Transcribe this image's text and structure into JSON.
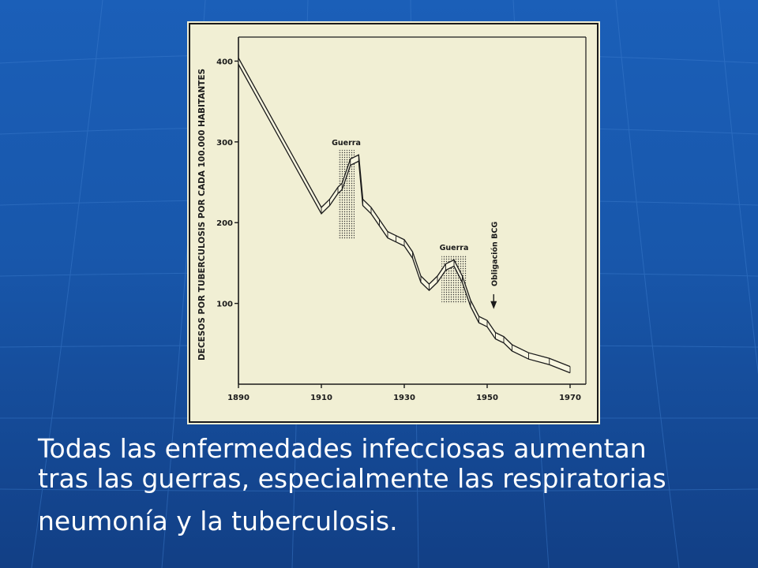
{
  "chart_data": {
    "type": "line",
    "ylabel": "DECESOS POR TUBERCULOSIS POR CADA 100.000 HABITANTES",
    "xlim": [
      1890,
      1970
    ],
    "ylim": [
      0,
      420
    ],
    "x_ticks": [
      "1890",
      "1910",
      "1930",
      "1950",
      "1970"
    ],
    "y_ticks": [
      "100",
      "200",
      "300",
      "400"
    ],
    "x_tick_values": [
      1890,
      1910,
      1930,
      1950,
      1970
    ],
    "y_tick_values": [
      100,
      200,
      300,
      400
    ],
    "series": [
      {
        "x": [
          1890,
          1910,
          1912,
          1914,
          1915,
          1917,
          1919,
          1920,
          1922,
          1924,
          1926,
          1928,
          1930,
          1932,
          1934,
          1936,
          1938,
          1940,
          1942,
          1944,
          1946,
          1948,
          1950,
          1952,
          1954,
          1956,
          1960,
          1965,
          1970
        ],
        "y": [
          400,
          215,
          225,
          240,
          245,
          275,
          280,
          225,
          215,
          200,
          185,
          180,
          175,
          160,
          130,
          120,
          130,
          145,
          150,
          130,
          100,
          80,
          75,
          60,
          55,
          45,
          35,
          28,
          18
        ]
      }
    ],
    "annotations": [
      {
        "text": "Guerra",
        "x_range": [
          1914,
          1918
        ]
      },
      {
        "text": "Guerra",
        "x_range": [
          1939,
          1945
        ]
      },
      {
        "text": "Obligación BCG",
        "x": 1951
      }
    ]
  },
  "caption": {
    "line1": "Todas las enfermedades infecciosas aumentan",
    "line2": "tras las guerras, especialmente las respiratorias",
    "line3": "neumonía y la tuberculosis."
  }
}
